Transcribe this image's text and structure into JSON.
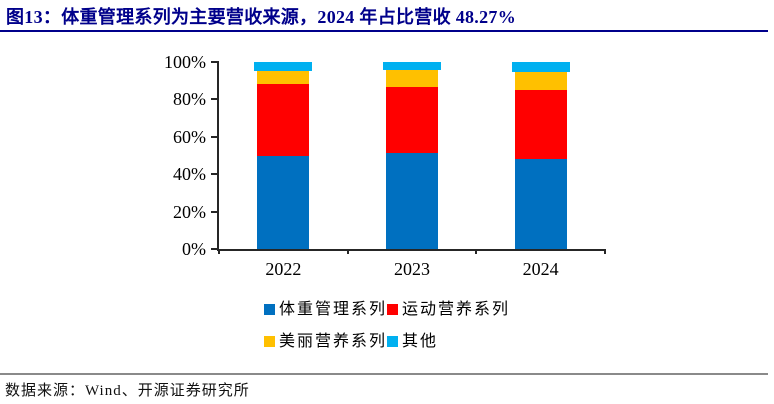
{
  "header": {
    "title": "图13：体重管理系列为主要营收来源，2024 年占比营收 48.27%",
    "accent_color": "#00008B"
  },
  "chart_data": {
    "type": "bar",
    "stacked": true,
    "categories": [
      "2022",
      "2023",
      "2024"
    ],
    "series": [
      {
        "name": "体重管理系列",
        "color": "#0070C0",
        "values": [
          49.7,
          51.5,
          48.27
        ]
      },
      {
        "name": "运动营养系列",
        "color": "#FF0000",
        "values": [
          38.5,
          35.0,
          36.83
        ]
      },
      {
        "name": "美丽营养系列",
        "color": "#FFC000",
        "values": [
          7.0,
          9.5,
          9.6
        ]
      },
      {
        "name": "其他",
        "color": "#00B0F0",
        "values": [
          4.8,
          4.0,
          5.3
        ]
      }
    ],
    "y_ticks": [
      "0%",
      "20%",
      "40%",
      "60%",
      "80%",
      "100%"
    ],
    "ylim": [
      0,
      100
    ],
    "grid": false,
    "legend_position": "bottom",
    "legend_rows": [
      [
        0,
        1
      ],
      [
        2,
        3
      ]
    ]
  },
  "footer": {
    "source": "数据来源：Wind、开源证券研究所"
  }
}
